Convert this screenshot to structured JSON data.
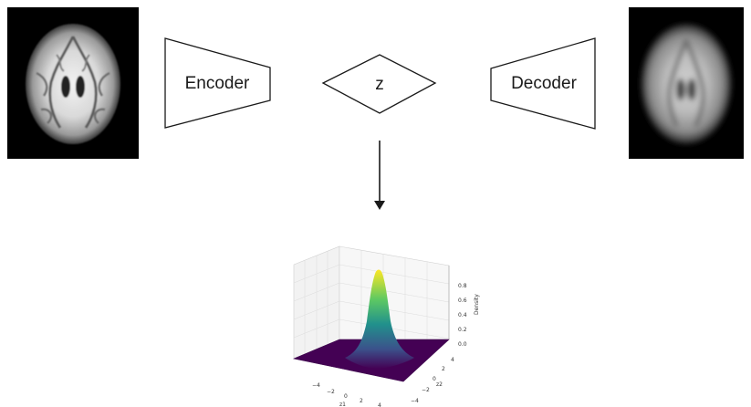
{
  "encoder": {
    "label": "Encoder"
  },
  "latent": {
    "label": "z"
  },
  "decoder": {
    "label": "Decoder"
  },
  "input_image": {
    "description_icon": "brain-scan-icon"
  },
  "output_image": {
    "description_icon": "brain-reconstruction-icon"
  },
  "colors": {
    "stroke": "#1a1a1a",
    "image_background": "#000000",
    "surface_low": "#440154",
    "surface_mid": "#21918c",
    "surface_high": "#fde725"
  },
  "density_plot": {
    "zlabel": "Density",
    "xlabel": "z1",
    "ylabel": "z2",
    "z_ticks": [
      "0.0",
      "0.2",
      "0.4",
      "0.6",
      "0.8"
    ],
    "x_ticks": [
      "−4",
      "−2",
      "0",
      "2",
      "4"
    ],
    "y_ticks": [
      "−4",
      "−2",
      "0",
      "2",
      "4"
    ]
  }
}
